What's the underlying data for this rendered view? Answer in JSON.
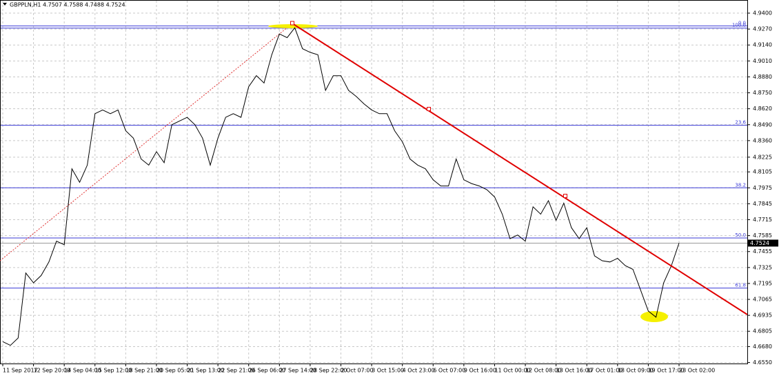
{
  "chart_data": {
    "type": "line",
    "title": "GBPPLN,H1  4.7507 4.7588 4.7488 4.7524",
    "categories": [
      "11 Sep 2017",
      null,
      null,
      null,
      "12 Sep 20:00",
      null,
      null,
      null,
      "14 Sep 04:00",
      null,
      null,
      null,
      "15 Sep 12:00",
      null,
      null,
      null,
      "18 Sep 21:00",
      null,
      null,
      null,
      "20 Sep 05:00",
      null,
      null,
      null,
      "21 Sep 13:00",
      null,
      null,
      null,
      "22 Sep 21:00",
      null,
      null,
      null,
      "26 Sep 06:00",
      null,
      null,
      null,
      "27 Sep 14:00",
      null,
      null,
      null,
      "28 Sep 22:00",
      null,
      null,
      null,
      "2 Oct 07:00",
      null,
      null,
      null,
      "3 Oct 15:00",
      null,
      null,
      null,
      "4 Oct 23:00",
      null,
      null,
      null,
      "6 Oct 07:00",
      null,
      null,
      null,
      "9 Oct 16:00",
      null,
      null,
      null,
      "11 Oct 00:00",
      null,
      null,
      null,
      "12 Oct 08:00",
      null,
      null,
      null,
      "13 Oct 16:00",
      null,
      null,
      null,
      "17 Oct 01:00",
      null,
      null,
      null,
      "18 Oct 09:00",
      null,
      null,
      null,
      "19 Oct 17:00",
      null,
      null,
      null,
      "23 Oct 02:00"
    ],
    "series": [
      {
        "name": "GBPPLN,H1",
        "color": "#000000",
        "values": [
          4.672,
          4.669,
          4.675,
          4.728,
          4.72,
          4.726,
          4.737,
          4.754,
          4.751,
          4.813,
          4.802,
          4.816,
          4.858,
          4.861,
          4.858,
          4.861,
          4.844,
          4.838,
          4.821,
          4.816,
          4.827,
          4.818,
          4.849,
          4.852,
          4.855,
          4.849,
          4.838,
          4.816,
          4.838,
          4.855,
          4.858,
          4.855,
          4.88,
          4.889,
          4.883,
          4.906,
          4.923,
          4.92,
          4.928,
          4.911,
          4.908,
          4.906,
          4.877,
          4.889,
          4.889,
          4.877,
          4.872,
          4.866,
          4.861,
          4.858,
          4.858,
          4.844,
          4.835,
          4.821,
          4.816,
          4.813,
          4.804,
          4.799,
          4.799,
          4.821,
          4.804,
          4.801,
          4.799,
          4.796,
          4.79,
          4.776,
          4.756,
          4.759,
          4.754,
          4.782,
          4.776,
          4.787,
          4.771,
          4.785,
          4.765,
          4.756,
          4.765,
          4.742,
          4.738,
          4.737,
          4.74,
          4.734,
          4.731,
          4.714,
          4.697,
          4.692,
          4.72,
          4.734,
          4.7524
        ]
      }
    ],
    "ylim": [
      4.6525,
      4.9507
    ],
    "yticks": [
      {
        "value": 4.94,
        "label": "4.9400"
      },
      {
        "value": 4.927,
        "label": "4.9270"
      },
      {
        "value": 4.914,
        "label": "4.9140"
      },
      {
        "value": 4.901,
        "label": "4.9010"
      },
      {
        "value": 4.888,
        "label": "4.8880"
      },
      {
        "value": 4.875,
        "label": "4.8750"
      },
      {
        "value": 4.862,
        "label": "4.8620"
      },
      {
        "value": 4.849,
        "label": "4.8490"
      },
      {
        "value": 4.836,
        "label": "4.8360"
      },
      {
        "value": 4.8225,
        "label": "4.8225"
      },
      {
        "value": 4.8105,
        "label": "4.8105"
      },
      {
        "value": 4.7975,
        "label": "4.7975"
      },
      {
        "value": 4.7845,
        "label": "4.7845"
      },
      {
        "value": 4.7715,
        "label": "4.7715"
      },
      {
        "value": 4.7585,
        "label": "4.7585"
      },
      {
        "value": 4.7455,
        "label": "4.7455"
      },
      {
        "value": 4.7325,
        "label": "4.7325"
      },
      {
        "value": 4.7195,
        "label": "4.7195"
      },
      {
        "value": 4.7065,
        "label": "4.7065"
      },
      {
        "value": 4.6935,
        "label": "4.6935"
      },
      {
        "value": 4.6805,
        "label": "4.6805"
      },
      {
        "value": 4.668,
        "label": "4.6680"
      },
      {
        "value": 4.655,
        "label": "4.6550"
      }
    ],
    "grid": true,
    "last_price": {
      "value": 4.7524,
      "label": "4.7524"
    },
    "fib_levels": [
      {
        "label": "0.0",
        "value": 4.9295
      },
      {
        "label": "100.0",
        "value": 4.9278
      },
      {
        "label": "23.6",
        "value": 4.8485
      },
      {
        "label": "38.2",
        "value": 4.7975
      },
      {
        "label": "50.0",
        "value": 4.7566
      },
      {
        "label": "61.8",
        "value": 4.7157
      }
    ],
    "fib_color": "#3a3ad6"
  }
}
